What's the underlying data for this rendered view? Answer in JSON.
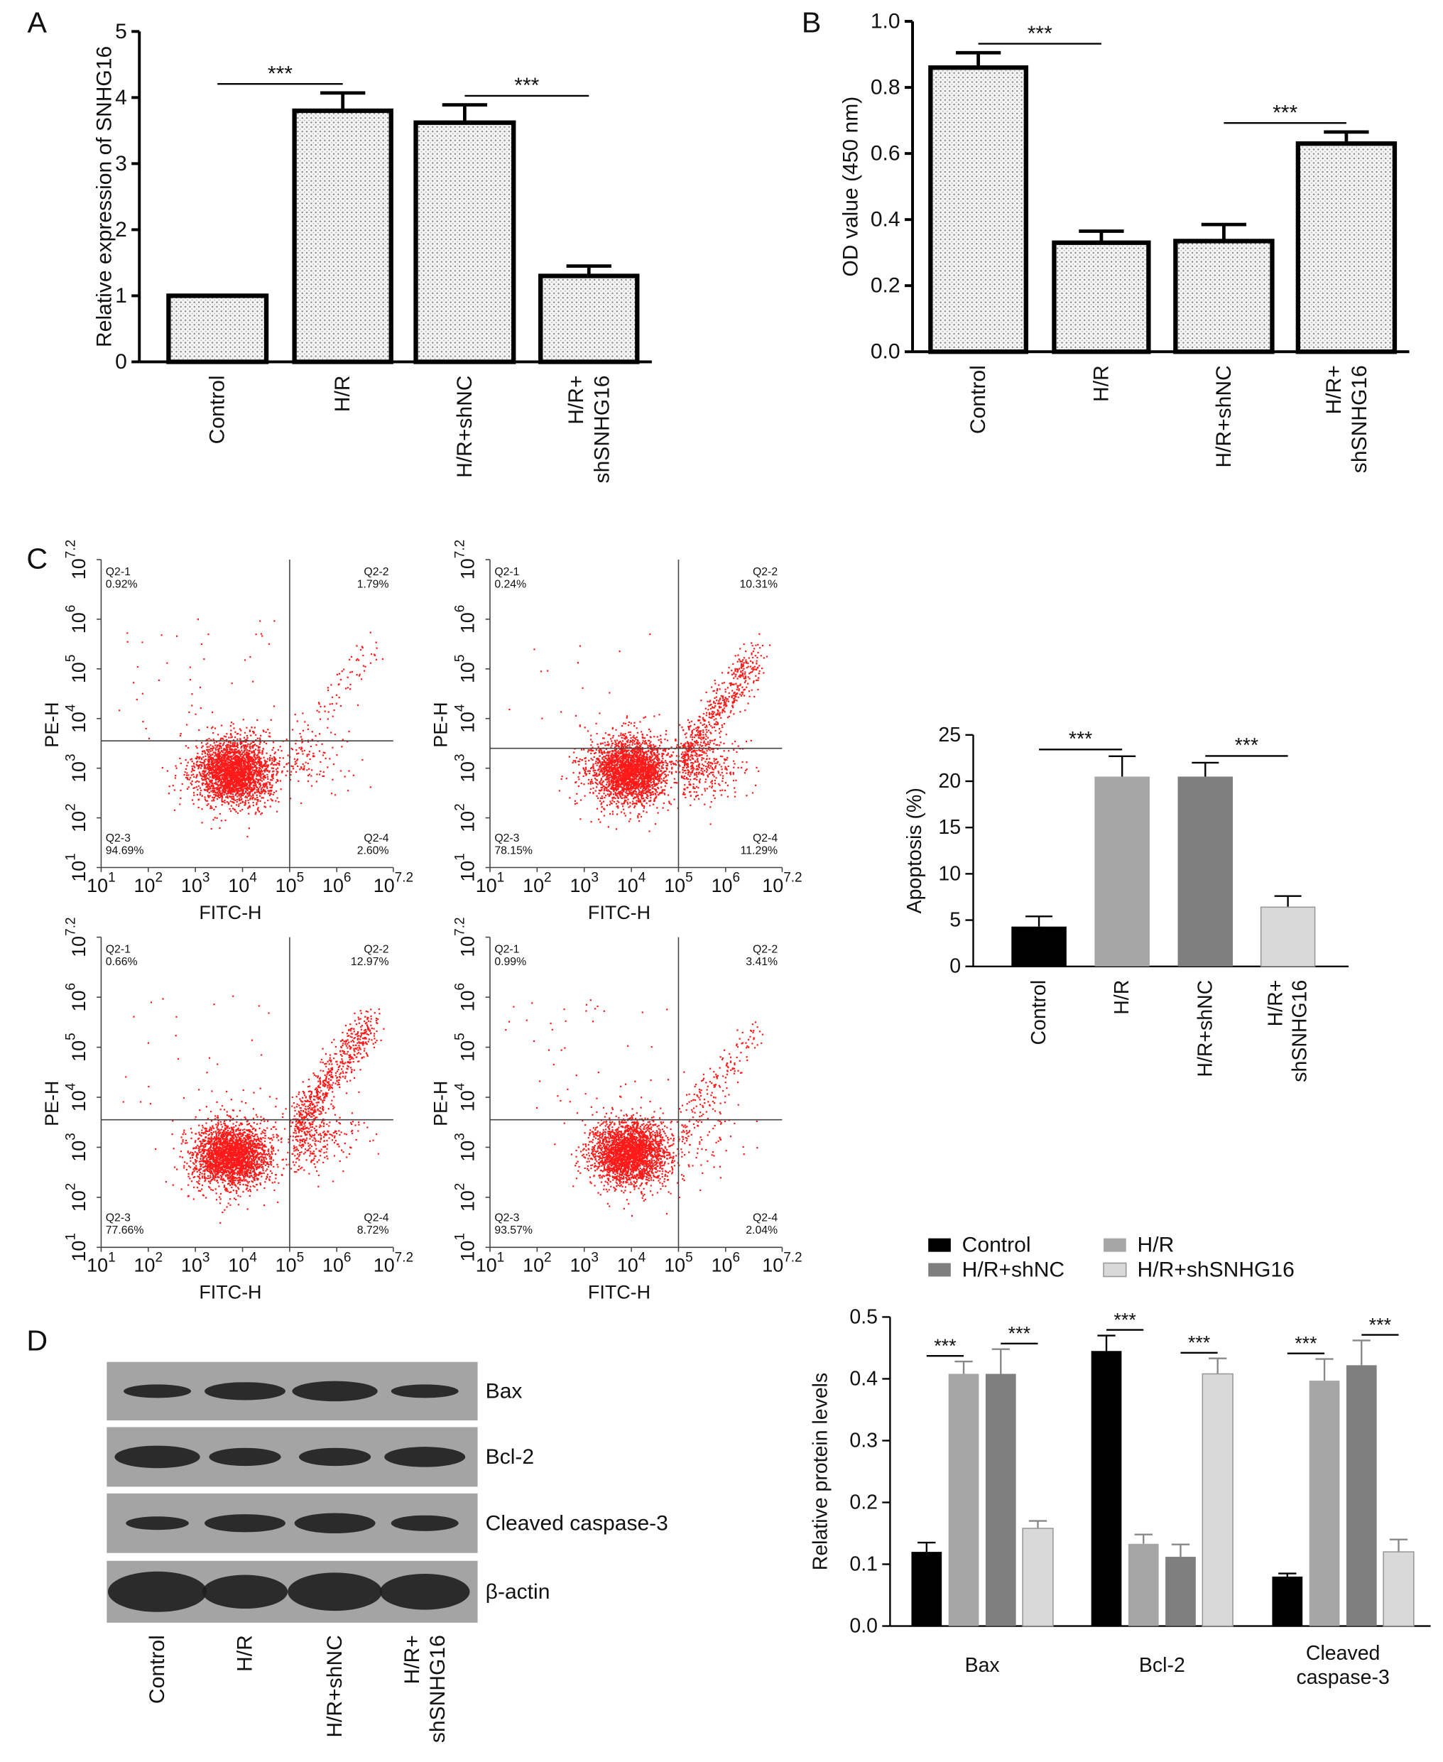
{
  "panels": [
    "A",
    "B",
    "C",
    "D"
  ],
  "chart_data": [
    {
      "type": "bar",
      "ylabel": "Relative expression of SNHG16",
      "categories": [
        "Control",
        "H/R",
        "H/R+shNC",
        "H/R+\nshSNHG16"
      ],
      "values": [
        1.0,
        3.8,
        3.62,
        1.3
      ],
      "errors": [
        0,
        0.27,
        0.27,
        0.15
      ],
      "fill_pattern": "dots",
      "ylim": [
        0,
        5
      ],
      "yticks": [
        0,
        1,
        2,
        3,
        4,
        5
      ],
      "significance": [
        {
          "from": 0,
          "to": 1,
          "label": "***"
        },
        {
          "from": 2,
          "to": 3,
          "label": "***"
        }
      ]
    },
    {
      "type": "bar",
      "ylabel": "OD value (450 nm)",
      "categories": [
        "Control",
        "H/R",
        "H/R+shNC",
        "H/R+\nshSNHG16"
      ],
      "values": [
        0.86,
        0.33,
        0.335,
        0.63
      ],
      "errors": [
        0.045,
        0.035,
        0.05,
        0.035
      ],
      "fill_pattern": "dots",
      "ylim": [
        0,
        1.0
      ],
      "yticks": [
        {
          "value": 0,
          "label": "0.0"
        },
        0.2,
        0.4,
        0.6,
        0.8,
        {
          "value": 1.0,
          "label": "1.0"
        }
      ],
      "significance": [
        {
          "from": 0,
          "to": 1,
          "label": "***"
        },
        {
          "from": 2,
          "to": 3,
          "label": "***"
        }
      ]
    },
    {
      "type": "flow",
      "xlabel": "FITC-H",
      "ylabel": "PE-H",
      "log_base": 10,
      "xlim": [
        1,
        7.2
      ],
      "ylim": [
        1,
        7.2
      ],
      "xticks": [
        1,
        2,
        3,
        4,
        5,
        6,
        7.2
      ],
      "yticks": [
        1,
        2,
        3,
        4,
        5,
        6,
        7.2
      ],
      "gate_x": 5,
      "gate_y": 3.55,
      "color": "#ff1a1a",
      "quadrants": {
        "names": [
          "Q2-1",
          "Q2-2",
          "Q2-3",
          "Q2-4"
        ],
        "values": [
          0.92,
          1.79,
          94.69,
          2.6
        ],
        "value_labels": [
          "0.92%",
          "1.79%",
          "94.69%",
          "2.60%"
        ]
      }
    },
    {
      "type": "flow",
      "xlabel": "FITC-H",
      "ylabel": "PE-H",
      "log_base": 10,
      "xlim": [
        1,
        7.2
      ],
      "ylim": [
        1,
        7.2
      ],
      "xticks": [
        1,
        2,
        3,
        4,
        5,
        6,
        7.2
      ],
      "yticks": [
        1,
        2,
        3,
        4,
        5,
        6,
        7.2
      ],
      "gate_x": 5,
      "gate_y": 3.4,
      "color": "#ff1a1a",
      "quadrants": {
        "names": [
          "Q2-1",
          "Q2-2",
          "Q2-3",
          "Q2-4"
        ],
        "values": [
          0.24,
          10.31,
          78.15,
          11.29
        ],
        "value_labels": [
          "0.24%",
          "10.31%",
          "78.15%",
          "11.29%"
        ]
      }
    },
    {
      "type": "flow",
      "xlabel": "FITC-H",
      "ylabel": "PE-H",
      "log_base": 10,
      "xlim": [
        1,
        7.2
      ],
      "ylim": [
        1,
        7.2
      ],
      "xticks": [
        1,
        2,
        3,
        4,
        5,
        6,
        7.2
      ],
      "yticks": [
        1,
        2,
        3,
        4,
        5,
        6,
        7.2
      ],
      "gate_x": 5,
      "gate_y": 3.55,
      "color": "#ff1a1a",
      "quadrants": {
        "names": [
          "Q2-1",
          "Q2-2",
          "Q2-3",
          "Q2-4"
        ],
        "values": [
          0.66,
          12.97,
          77.66,
          8.72
        ],
        "value_labels": [
          "0.66%",
          "12.97%",
          "77.66%",
          "8.72%"
        ]
      }
    },
    {
      "type": "flow",
      "xlabel": "FITC-H",
      "ylabel": "PE-H",
      "log_base": 10,
      "xlim": [
        1,
        7.2
      ],
      "ylim": [
        1,
        7.2
      ],
      "xticks": [
        1,
        2,
        3,
        4,
        5,
        6,
        7.2
      ],
      "yticks": [
        1,
        2,
        3,
        4,
        5,
        6,
        7.2
      ],
      "gate_x": 5,
      "gate_y": 3.55,
      "color": "#ff1a1a",
      "quadrants": {
        "names": [
          "Q2-1",
          "Q2-2",
          "Q2-3",
          "Q2-4"
        ],
        "values": [
          0.99,
          3.41,
          93.57,
          2.04
        ],
        "value_labels": [
          "0.99%",
          "3.41%",
          "93.57%",
          "2.04%"
        ]
      }
    },
    {
      "type": "bar",
      "ylabel": "Apoptosis (%)",
      "categories": [
        "Control",
        "H/R",
        "H/R+shNC",
        "H/R+\nshSNHG16"
      ],
      "values": [
        4.3,
        20.5,
        20.5,
        6.4
      ],
      "errors": [
        1.1,
        2.2,
        1.5,
        1.2
      ],
      "colors": [
        "#000000",
        "#a6a6a6",
        "#7f7f7f",
        "#d9d9d9"
      ],
      "ylim": [
        0,
        25
      ],
      "yticks": [
        0,
        5,
        10,
        15,
        20,
        25
      ],
      "significance": [
        {
          "from": 0,
          "to": 1,
          "label": "***"
        },
        {
          "from": 2,
          "to": 3,
          "label": "***"
        }
      ]
    },
    {
      "type": "grouped_bar",
      "ylabel": "Relative protein levels",
      "categories": [
        "Bax",
        "Bcl-2",
        "Cleaved\ncaspase-3"
      ],
      "series": [
        {
          "name": "Control",
          "color": "#000000",
          "values": [
            0.12,
            0.445,
            0.08
          ],
          "errors": [
            0.015,
            0.025,
            0.005
          ]
        },
        {
          "name": "H/R",
          "color": "#a6a6a6",
          "values": [
            0.408,
            0.133,
            0.397
          ],
          "errors": [
            0.02,
            0.015,
            0.035
          ]
        },
        {
          "name": "H/R+shNC",
          "color": "#7f7f7f",
          "values": [
            0.408,
            0.112,
            0.422
          ],
          "errors": [
            0.04,
            0.02,
            0.04
          ]
        },
        {
          "name": "H/R+shSNHG16",
          "color": "#d9d9d9",
          "values": [
            0.158,
            0.408,
            0.12
          ],
          "errors": [
            0.012,
            0.025,
            0.02
          ]
        }
      ],
      "ylim": [
        0,
        0.5
      ],
      "yticks": [
        {
          "value": 0,
          "label": "0.0"
        },
        0.1,
        0.2,
        0.3,
        0.4,
        0.5
      ],
      "significance": [
        {
          "category": 0,
          "from": 0,
          "to": 1,
          "label": "***"
        },
        {
          "category": 0,
          "from": 2,
          "to": 3,
          "label": "***"
        },
        {
          "category": 1,
          "from": 0,
          "to": 1,
          "label": "***"
        },
        {
          "category": 1,
          "from": 2,
          "to": 3,
          "label": "***"
        },
        {
          "category": 2,
          "from": 0,
          "to": 1,
          "label": "***"
        },
        {
          "category": 2,
          "from": 2,
          "to": 3,
          "label": "***"
        }
      ]
    }
  ],
  "blot": {
    "proteins": [
      "Bax",
      "Bcl-2",
      "Cleaved caspase-3",
      "β-actin"
    ],
    "lanes": [
      "Control",
      "H/R",
      "H/R+shNC",
      "H/R+\nshSNHG16"
    ]
  }
}
